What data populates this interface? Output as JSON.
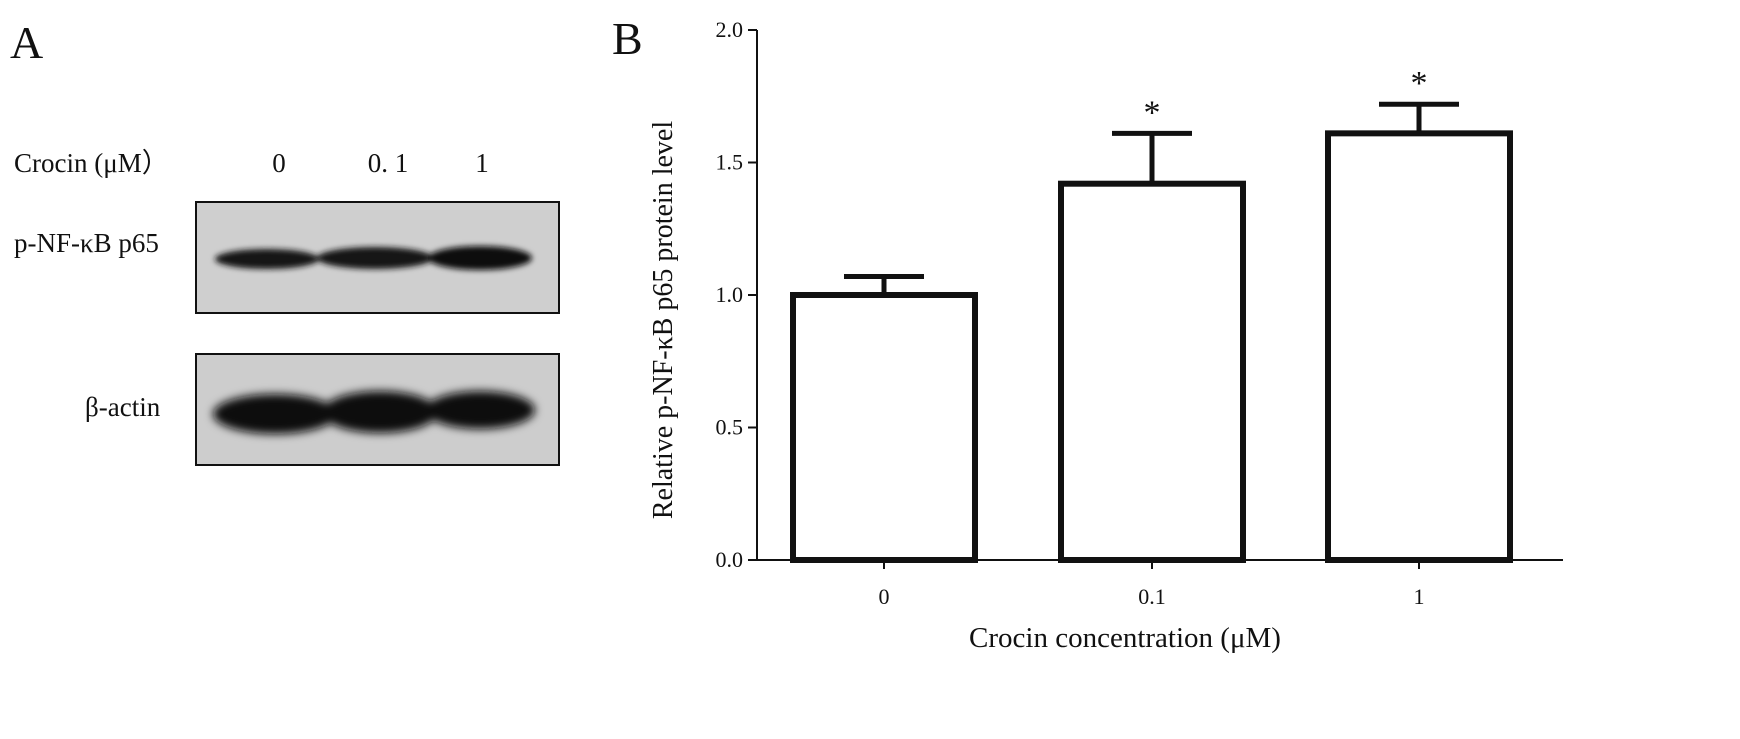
{
  "panel_a": {
    "letter": "A",
    "crocin_label": "Crocin (μM）",
    "lanes": [
      "0",
      "0. 1",
      "1"
    ],
    "blots": [
      {
        "label": "p-NF-κB p65"
      },
      {
        "label": "β-actin"
      }
    ]
  },
  "panel_b": {
    "letter": "B"
  },
  "chart_data": {
    "type": "bar",
    "categories": [
      "0",
      "0.1",
      "1"
    ],
    "values": [
      1.0,
      1.42,
      1.61
    ],
    "error": [
      0.07,
      0.19,
      0.11
    ],
    "significance": [
      "",
      "*",
      "*"
    ],
    "ylabel": "Relative  p-NF-κB p65 protein level",
    "xlabel": "Crocin concentration (μM)",
    "ylim": [
      0,
      2.0
    ],
    "yticks": [
      "0.0",
      "0.5",
      "1.0",
      "1.5",
      "2.0"
    ],
    "grid": false,
    "bar_fill": "#ffffff",
    "bar_stroke": "#111111"
  }
}
